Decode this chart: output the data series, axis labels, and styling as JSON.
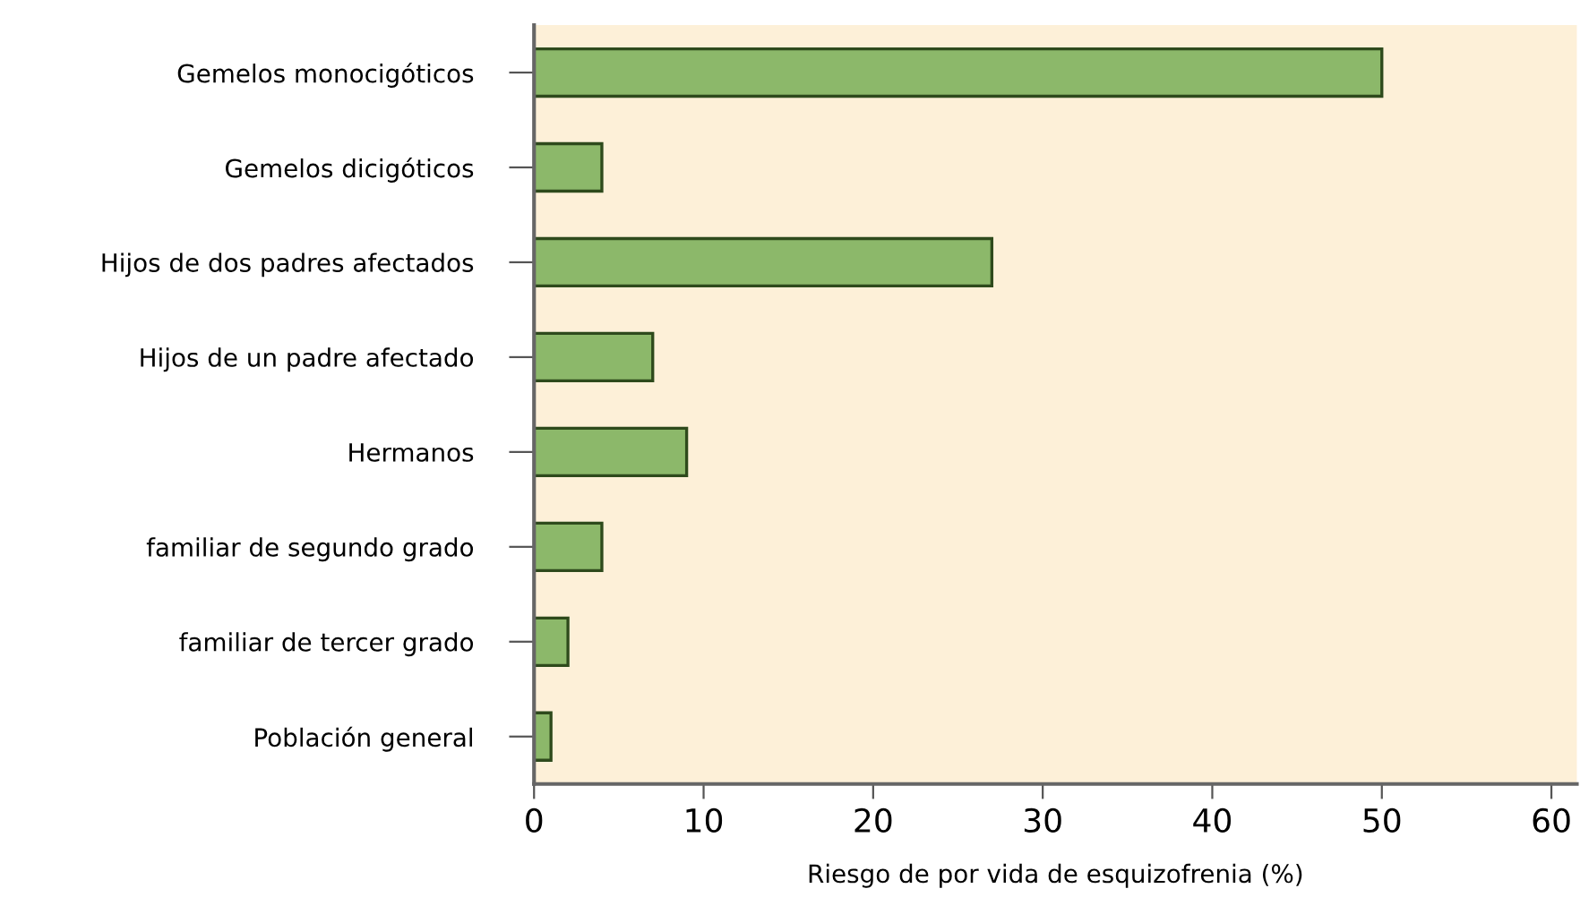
{
  "chart_data": {
    "type": "bar",
    "orientation": "horizontal",
    "xlabel": "Riesgo de por vida de esquizofrenia (%)",
    "categories": [
      "Gemelos monocigóticos",
      "Gemelos dicigóticos",
      "Hijos de dos padres afectados",
      "Hijos de un padre afectado",
      "Hermanos",
      "familiar de segundo grado",
      "familiar de tercer grado",
      "Población general"
    ],
    "values": [
      50,
      4,
      27,
      7,
      9,
      4,
      2,
      1
    ],
    "color": "#8cb86a",
    "xlim": [
      0,
      61.5
    ],
    "xticks": [
      0,
      10,
      20,
      30,
      40,
      50,
      60
    ],
    "grid": false
  }
}
